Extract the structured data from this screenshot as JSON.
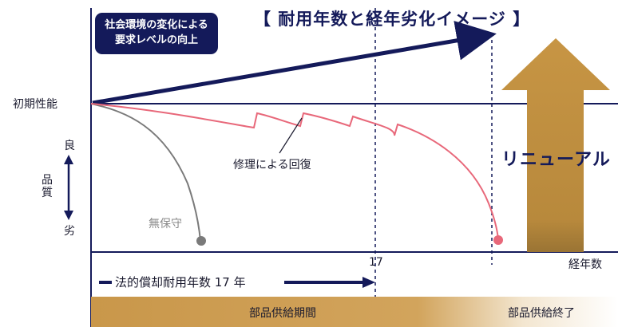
{
  "title": "【 耐用年数と経年劣化イメージ 】",
  "callout": {
    "line1": "社会環境の変化による",
    "line2": "要求レベルの向上"
  },
  "y_axis": {
    "initial": "初期性能",
    "good": "良",
    "quality": "品質",
    "bad": "劣"
  },
  "x_axis": {
    "label": "経年数",
    "tick_17": "17"
  },
  "annotations": {
    "no_maintenance": "無保守",
    "repair": "修理による回復",
    "renewal": "リニューアル",
    "legal_life": "法的償却耐用年数 17 年"
  },
  "bottom_bar": {
    "supply_period": "部品供給期間",
    "supply_end": "部品供給終了"
  },
  "colors": {
    "navy": "#141a5a",
    "repair_curve": "#e8687a",
    "no_maint_curve": "#7a7a7a",
    "gold": "#c9974a"
  }
}
